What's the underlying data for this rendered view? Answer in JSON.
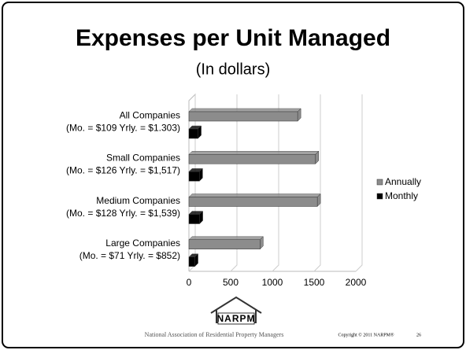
{
  "chart_data": {
    "type": "bar",
    "orientation": "horizontal",
    "title": "Expenses per Unit Managed",
    "subtitle": "(In dollars)",
    "categories": [
      "All Companies",
      "Small Companies",
      "Medium Companies",
      "Large Companies"
    ],
    "category_notes": [
      "(Mo. = $109  Yrly. = $1.303)",
      "(Mo. = $126  Yrly. = $1,517)",
      "(Mo. = $128  Yrly. = $1,539)",
      "(Mo. = $71  Yrly. = $852)"
    ],
    "series": [
      {
        "name": "Annually",
        "color": "#8c8c8c",
        "values": [
          1303,
          1517,
          1539,
          852
        ]
      },
      {
        "name": "Monthly",
        "color": "#000000",
        "values": [
          109,
          126,
          128,
          71
        ]
      }
    ],
    "xlim": [
      0,
      2000
    ],
    "xticks": [
      0,
      500,
      1000,
      1500,
      2000
    ],
    "grid": true,
    "legend": "right"
  },
  "footer": {
    "logo": "NARPM",
    "organization": "National Association of Residential Property Managers",
    "copyright": "Copyright © 2011 NARPM®",
    "page": "26"
  }
}
